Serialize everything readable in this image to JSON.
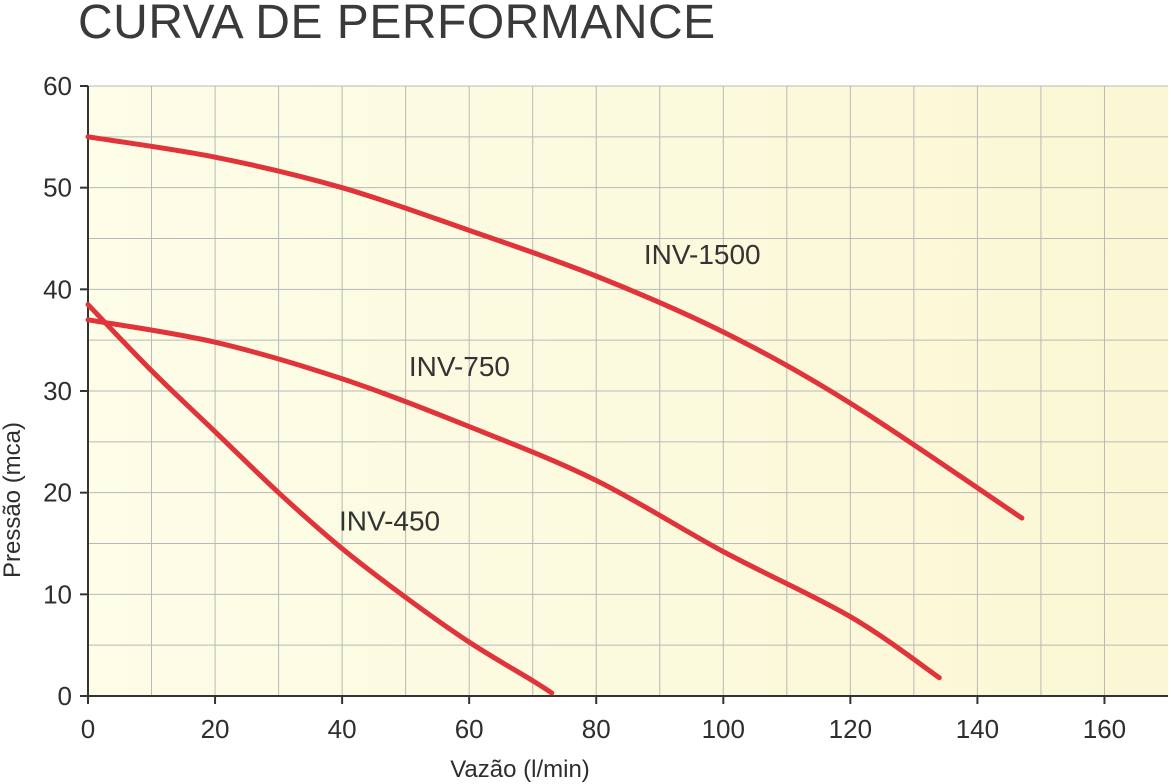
{
  "chart_data": {
    "type": "line",
    "title": "CURVA DE PERFORMANCE",
    "xlabel": "Vazão (l/min)",
    "ylabel": "Pressão (mca)",
    "xlim": [
      0,
      170
    ],
    "ylim": [
      0,
      60
    ],
    "xticks": [
      0,
      20,
      40,
      60,
      80,
      100,
      120,
      140,
      160
    ],
    "yticks": [
      0,
      10,
      20,
      30,
      40,
      50,
      60
    ],
    "x_minor_step": 10,
    "y_minor_step": 5,
    "grid": true,
    "line_color": "#e0343a",
    "background_gradient": [
      "#fdfde8",
      "#fbf7d4"
    ],
    "series": [
      {
        "name": "INV-450",
        "x": [
          0,
          10,
          20,
          30,
          40,
          50,
          60,
          70,
          73
        ],
        "values": [
          38.5,
          32,
          26,
          20,
          14.5,
          9.7,
          5.3,
          1.5,
          0.3
        ]
      },
      {
        "name": "INV-750",
        "x": [
          0,
          20,
          40,
          60,
          80,
          100,
          120,
          134
        ],
        "values": [
          37,
          34.8,
          31.2,
          26.5,
          21.2,
          14.2,
          7.8,
          1.8
        ]
      },
      {
        "name": "INV-1500",
        "x": [
          0,
          20,
          40,
          60,
          80,
          100,
          120,
          147
        ],
        "values": [
          55,
          53,
          50,
          45.8,
          41.3,
          35.8,
          28.8,
          17.5
        ]
      }
    ],
    "labels": [
      {
        "text": "INV-1500",
        "x": 87.5,
        "y": 42.5
      },
      {
        "text": "INV-750",
        "x": 50.5,
        "y": 31.5
      },
      {
        "text": "INV-450",
        "x": 39.5,
        "y": 16.3
      }
    ]
  }
}
